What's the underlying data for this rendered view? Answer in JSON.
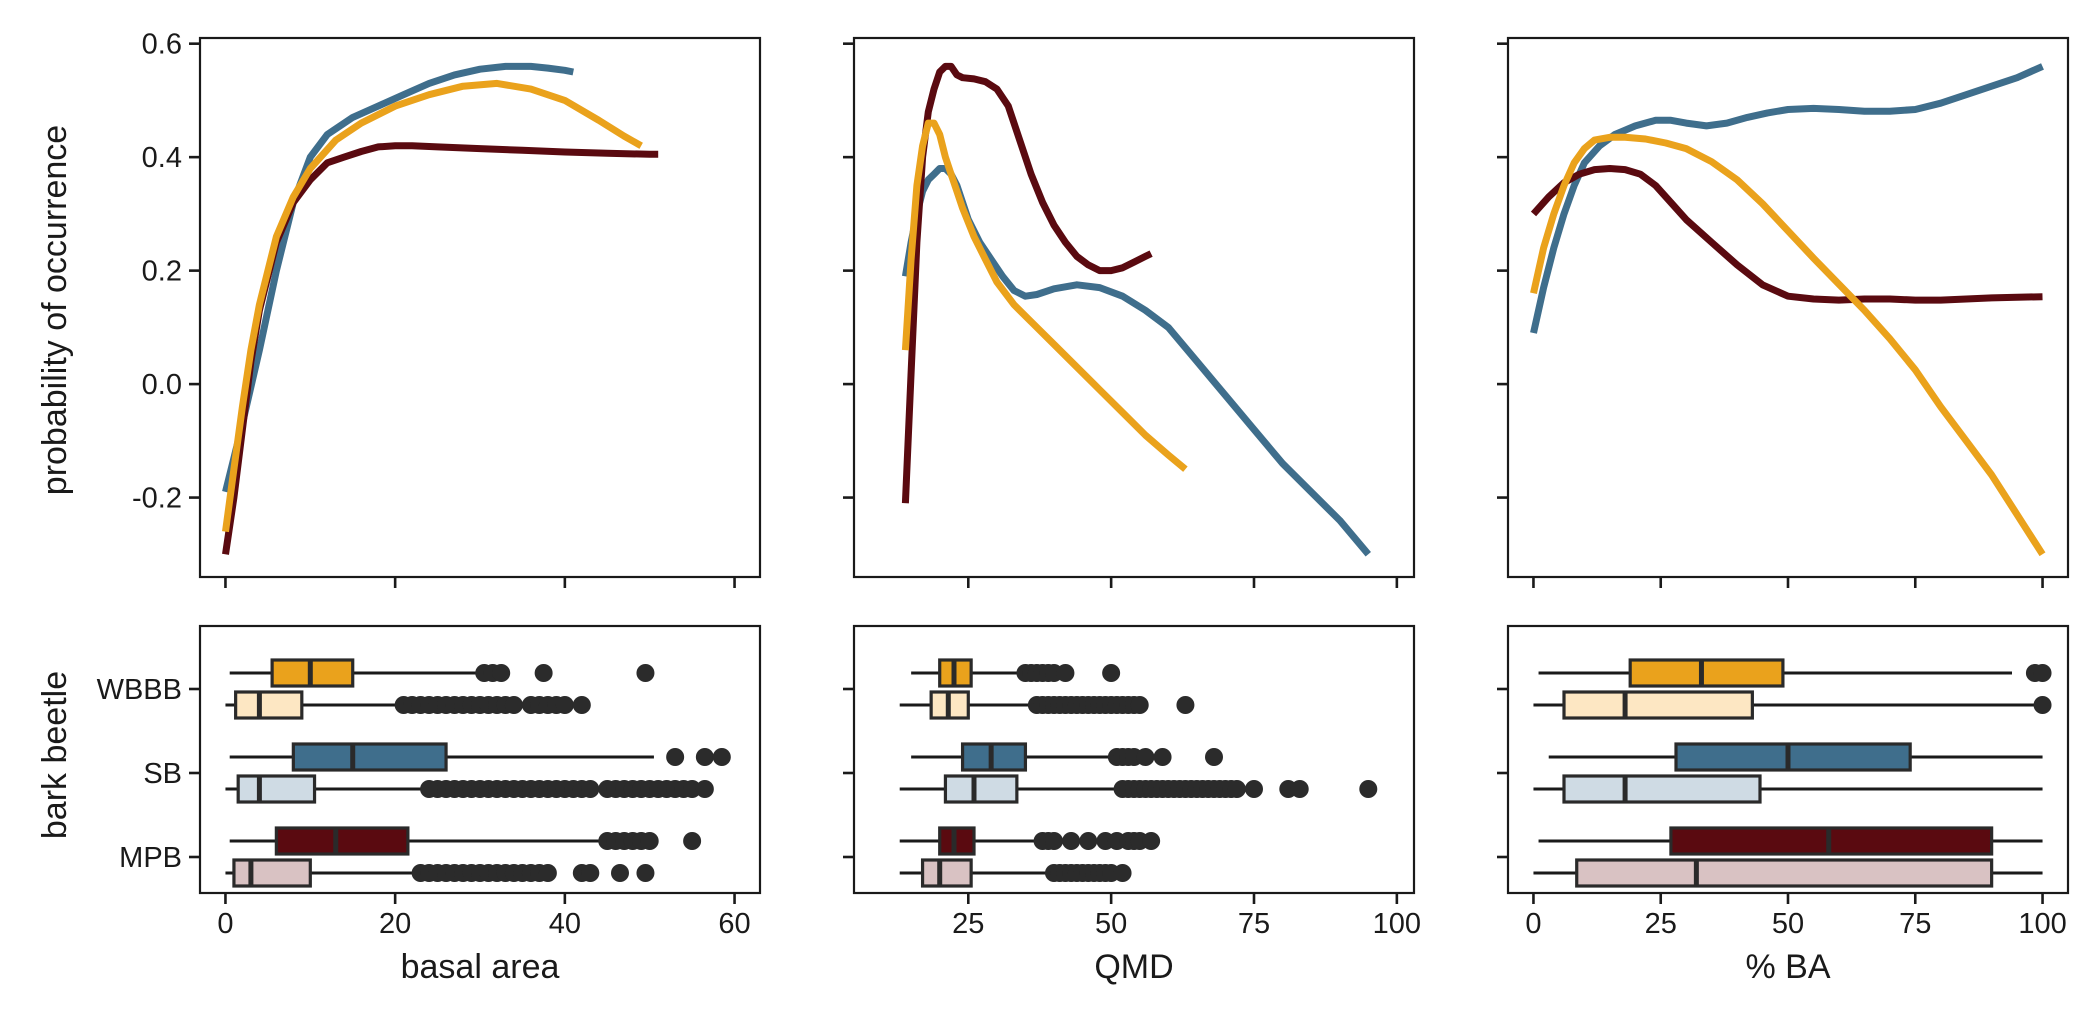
{
  "chart_data": {
    "type": "line",
    "ylabel": "probability of occurrence",
    "ylabel_box": "bark beetle",
    "groups": [
      "MPB",
      "SB",
      "WBBB"
    ],
    "y_ticks": [
      -0.2,
      0.0,
      0.2,
      0.4,
      0.6
    ],
    "y_tick_labels": [
      "-0.2",
      "0.0",
      "0.2",
      "0.4",
      "0.6"
    ],
    "ylim": [
      -0.34,
      0.61
    ],
    "colors": {
      "MPB": "#5a0a10",
      "SB": "#3f6e8c",
      "WBBB": "#eaa21c"
    },
    "light_colors": {
      "MPB": "#d9c2c3",
      "SB": "#cfdbe4",
      "WBBB": "#fde7c3"
    },
    "panels": [
      {
        "xlabel": "basal area",
        "xlim": [
          -3,
          63
        ],
        "x_ticks": [
          0,
          20,
          40,
          60
        ],
        "x_tick_labels": [
          "0",
          "20",
          "40",
          "60"
        ],
        "series": [
          {
            "name": "SB",
            "x": [
              0,
              2,
              4,
              6,
              8,
              10,
              12,
              15,
              18,
              21,
              24,
              27,
              30,
              33,
              36,
              38,
              40,
              41
            ],
            "y": [
              -0.19,
              -0.07,
              0.06,
              0.2,
              0.32,
              0.4,
              0.44,
              0.47,
              0.49,
              0.51,
              0.53,
              0.545,
              0.555,
              0.56,
              0.56,
              0.557,
              0.553,
              0.55
            ]
          },
          {
            "name": "MPB",
            "x": [
              0,
              1,
              2,
              3,
              4,
              6,
              8,
              10,
              12,
              14,
              16,
              18,
              20,
              22,
              25,
              30,
              35,
              40,
              45,
              50,
              51
            ],
            "y": [
              -0.3,
              -0.2,
              -0.08,
              0.04,
              0.13,
              0.25,
              0.32,
              0.36,
              0.39,
              0.4,
              0.41,
              0.418,
              0.42,
              0.42,
              0.418,
              0.415,
              0.412,
              0.409,
              0.407,
              0.405,
              0.405
            ]
          },
          {
            "name": "WBBB",
            "x": [
              0,
              1,
              2,
              3,
              4,
              6,
              8,
              10,
              13,
              16,
              20,
              24,
              28,
              32,
              36,
              40,
              44,
              47,
              49
            ],
            "y": [
              -0.26,
              -0.15,
              -0.04,
              0.06,
              0.14,
              0.26,
              0.33,
              0.38,
              0.43,
              0.46,
              0.49,
              0.51,
              0.525,
              0.53,
              0.52,
              0.5,
              0.465,
              0.437,
              0.42
            ]
          }
        ],
        "boxplots": [
          {
            "name": "WBBB",
            "variant": "dark",
            "wmin": 0.5,
            "q1": 5.5,
            "median": 10,
            "q3": 15,
            "wmax": 30,
            "outliers": [
              30.5,
              31.5,
              32.5,
              37.5,
              49.5
            ]
          },
          {
            "name": "WBBB",
            "variant": "light",
            "wmin": 0,
            "q1": 1.2,
            "median": 4,
            "q3": 9,
            "wmax": 21,
            "outliers": [
              21,
              22,
              23,
              24,
              25,
              26,
              27,
              28,
              29,
              30,
              31,
              32,
              33,
              34,
              36,
              37,
              38,
              39,
              40,
              42
            ]
          },
          {
            "name": "SB",
            "variant": "dark",
            "wmin": 0.5,
            "q1": 8,
            "median": 15,
            "q3": 26,
            "wmax": 50.5,
            "outliers": [
              53,
              56.5,
              58.5
            ]
          },
          {
            "name": "SB",
            "variant": "light",
            "wmin": 0,
            "q1": 1.5,
            "median": 4,
            "q3": 10.5,
            "wmax": 23.5,
            "outliers": [
              24,
              25,
              26,
              27,
              28,
              29,
              30,
              31,
              32,
              33,
              34,
              35,
              36,
              37,
              38,
              39,
              40,
              41,
              42,
              43,
              45,
              46,
              47,
              48,
              49,
              50,
              51,
              52,
              53,
              54,
              55,
              56.5
            ]
          },
          {
            "name": "MPB",
            "variant": "dark",
            "wmin": 0.5,
            "q1": 6,
            "median": 13,
            "q3": 21.5,
            "wmax": 44,
            "outliers": [
              45,
              46,
              47,
              48,
              49,
              50,
              55
            ]
          },
          {
            "name": "MPB",
            "variant": "light",
            "wmin": 0,
            "q1": 1,
            "median": 3,
            "q3": 10,
            "wmax": 22.5,
            "outliers": [
              23,
              24,
              25,
              26,
              27,
              28,
              29,
              30,
              31,
              32,
              33,
              34,
              35,
              36,
              37,
              38,
              42,
              43,
              46.5,
              49.5
            ]
          }
        ]
      },
      {
        "xlabel": "QMD",
        "xlim": [
          5,
          103
        ],
        "x_ticks": [
          25,
          50,
          75,
          100
        ],
        "x_tick_labels": [
          "25",
          "50",
          "75",
          "100"
        ],
        "series": [
          {
            "name": "SB",
            "x": [
              14,
              15,
              16,
              17,
              18,
              19,
              20,
              21,
              22,
              23,
              24,
              25,
              27,
              29,
              31,
              33,
              35,
              37,
              40,
              44,
              48,
              52,
              56,
              60,
              65,
              70,
              75,
              80,
              85,
              90,
              95
            ],
            "y": [
              0.19,
              0.25,
              0.3,
              0.34,
              0.36,
              0.37,
              0.38,
              0.38,
              0.37,
              0.35,
              0.32,
              0.29,
              0.25,
              0.22,
              0.19,
              0.165,
              0.155,
              0.158,
              0.168,
              0.175,
              0.17,
              0.155,
              0.13,
              0.1,
              0.04,
              -0.02,
              -0.08,
              -0.14,
              -0.19,
              -0.24,
              -0.3
            ]
          },
          {
            "name": "MPB",
            "x": [
              14,
              15,
              16,
              17,
              18,
              19,
              20,
              21,
              22,
              23,
              24,
              26,
              28,
              30,
              32,
              34,
              36,
              38,
              40,
              42,
              44,
              46,
              48,
              50,
              52,
              54,
              56,
              57
            ],
            "y": [
              -0.21,
              0.02,
              0.25,
              0.4,
              0.48,
              0.52,
              0.55,
              0.56,
              0.56,
              0.545,
              0.54,
              0.538,
              0.533,
              0.52,
              0.49,
              0.43,
              0.37,
              0.32,
              0.28,
              0.25,
              0.225,
              0.21,
              0.2,
              0.2,
              0.205,
              0.215,
              0.225,
              0.23
            ]
          },
          {
            "name": "WBBB",
            "x": [
              14,
              15,
              16,
              17,
              18,
              19,
              20,
              21,
              22,
              23,
              24,
              26,
              28,
              30,
              33,
              36,
              40,
              44,
              48,
              52,
              56,
              60,
              63
            ],
            "y": [
              0.06,
              0.22,
              0.35,
              0.42,
              0.46,
              0.46,
              0.44,
              0.4,
              0.37,
              0.34,
              0.31,
              0.26,
              0.22,
              0.18,
              0.14,
              0.11,
              0.07,
              0.03,
              -0.01,
              -0.05,
              -0.09,
              -0.125,
              -0.15
            ]
          }
        ],
        "boxplots": [
          {
            "name": "WBBB",
            "variant": "dark",
            "wmin": 15,
            "q1": 20,
            "median": 22.5,
            "q3": 25.5,
            "wmax": 34,
            "outliers": [
              35,
              36,
              37,
              38,
              39,
              40,
              42,
              50
            ]
          },
          {
            "name": "WBBB",
            "variant": "light",
            "wmin": 13,
            "q1": 18.5,
            "median": 21.5,
            "q3": 25,
            "wmax": 36,
            "outliers": [
              37,
              38,
              39,
              40,
              41,
              42,
              43,
              44,
              45,
              46,
              47,
              48,
              49,
              50,
              51,
              52,
              53,
              54,
              55,
              63
            ]
          },
          {
            "name": "SB",
            "variant": "dark",
            "wmin": 15,
            "q1": 24,
            "median": 29,
            "q3": 35,
            "wmax": 50,
            "outliers": [
              51,
              52,
              53,
              54,
              56,
              59,
              68
            ]
          },
          {
            "name": "SB",
            "variant": "light",
            "wmin": 13,
            "q1": 21,
            "median": 26,
            "q3": 33.5,
            "wmax": 52,
            "outliers": [
              52,
              53,
              54,
              55,
              56,
              57,
              58,
              59,
              60,
              61,
              62,
              63,
              64,
              65,
              66,
              67,
              68,
              69,
              70,
              71,
              72,
              75,
              81,
              83,
              95
            ]
          },
          {
            "name": "MPB",
            "variant": "dark",
            "wmin": 13,
            "q1": 20,
            "median": 22.5,
            "q3": 26,
            "wmax": 37,
            "outliers": [
              38,
              39,
              40,
              43,
              46,
              49,
              51,
              53,
              54,
              55,
              57
            ]
          },
          {
            "name": "MPB",
            "variant": "light",
            "wmin": 13,
            "q1": 17,
            "median": 20,
            "q3": 25.5,
            "wmax": 39,
            "outliers": [
              40,
              41,
              42,
              43,
              44,
              45,
              46,
              47,
              48,
              49,
              50,
              52
            ]
          }
        ]
      },
      {
        "xlabel": "% BA",
        "xlim": [
          -5,
          105
        ],
        "x_ticks": [
          0,
          25,
          50,
          75,
          100
        ],
        "x_tick_labels": [
          "0",
          "25",
          "50",
          "75",
          "100"
        ],
        "series": [
          {
            "name": "SB",
            "x": [
              0,
              2,
              4,
              6,
              8,
              10,
              13,
              16,
              20,
              24,
              27,
              30,
              34,
              38,
              42,
              46,
              50,
              55,
              60,
              65,
              70,
              75,
              80,
              85,
              90,
              95,
              100
            ],
            "y": [
              0.09,
              0.17,
              0.24,
              0.3,
              0.35,
              0.39,
              0.42,
              0.44,
              0.455,
              0.465,
              0.465,
              0.46,
              0.455,
              0.46,
              0.47,
              0.478,
              0.484,
              0.486,
              0.484,
              0.481,
              0.481,
              0.484,
              0.495,
              0.51,
              0.525,
              0.54,
              0.56
            ]
          },
          {
            "name": "MPB",
            "x": [
              0,
              3,
              6,
              9,
              12,
              15,
              18,
              21,
              24,
              27,
              30,
              35,
              40,
              45,
              50,
              55,
              60,
              65,
              70,
              75,
              80,
              85,
              90,
              95,
              100
            ],
            "y": [
              0.3,
              0.33,
              0.355,
              0.37,
              0.378,
              0.38,
              0.378,
              0.37,
              0.35,
              0.32,
              0.29,
              0.25,
              0.21,
              0.175,
              0.155,
              0.15,
              0.148,
              0.15,
              0.15,
              0.148,
              0.148,
              0.15,
              0.152,
              0.153,
              0.154
            ]
          },
          {
            "name": "WBBB",
            "x": [
              0,
              2,
              4,
              6,
              8,
              10,
              12,
              15,
              18,
              22,
              26,
              30,
              35,
              40,
              45,
              50,
              55,
              60,
              65,
              70,
              75,
              80,
              85,
              90,
              95,
              100
            ],
            "y": [
              0.16,
              0.24,
              0.3,
              0.35,
              0.39,
              0.415,
              0.43,
              0.435,
              0.435,
              0.432,
              0.425,
              0.415,
              0.392,
              0.36,
              0.318,
              0.27,
              0.222,
              0.176,
              0.13,
              0.08,
              0.025,
              -0.04,
              -0.1,
              -0.16,
              -0.23,
              -0.3
            ]
          }
        ],
        "boxplots": [
          {
            "name": "WBBB",
            "variant": "dark",
            "wmin": 1,
            "q1": 19,
            "median": 33,
            "q3": 49,
            "wmax": 94,
            "outliers": [
              98.5,
              100
            ]
          },
          {
            "name": "WBBB",
            "variant": "light",
            "wmin": 0,
            "q1": 6,
            "median": 18,
            "q3": 43,
            "wmax": 99,
            "outliers": [
              100
            ]
          },
          {
            "name": "SB",
            "variant": "dark",
            "wmin": 3,
            "q1": 28,
            "median": 50,
            "q3": 74,
            "wmax": 100,
            "outliers": []
          },
          {
            "name": "SB",
            "variant": "light",
            "wmin": 0,
            "q1": 6,
            "median": 18,
            "q3": 44.5,
            "wmax": 100,
            "outliers": []
          },
          {
            "name": "MPB",
            "variant": "dark",
            "wmin": 1,
            "q1": 27,
            "median": 58,
            "q3": 90,
            "wmax": 100,
            "outliers": []
          },
          {
            "name": "MPB",
            "variant": "light",
            "wmin": 0,
            "q1": 8.5,
            "median": 32,
            "q3": 90,
            "wmax": 100,
            "outliers": []
          }
        ]
      }
    ]
  }
}
